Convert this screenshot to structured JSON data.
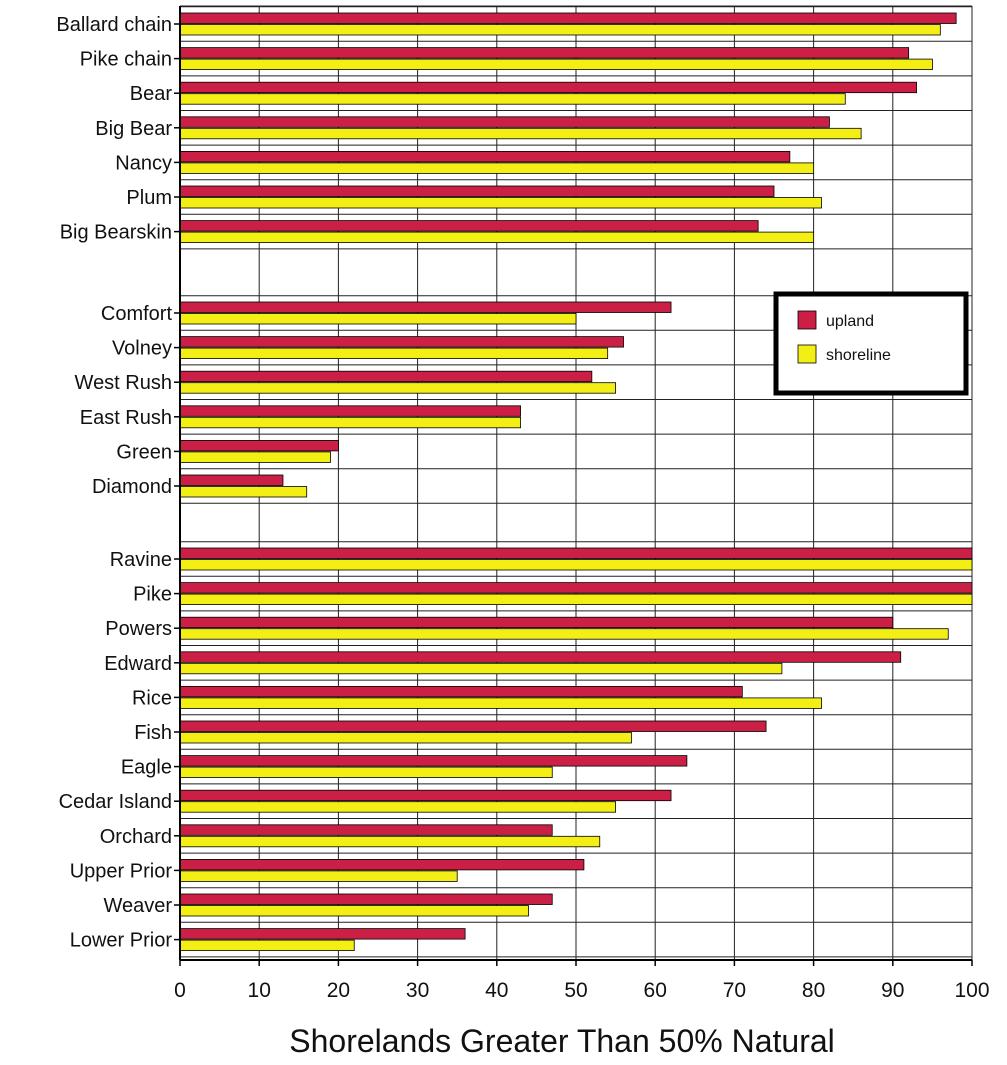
{
  "chart_data": {
    "type": "bar",
    "orientation": "horizontal",
    "xlabel": "Shorelands Greater Than 50% Natural",
    "xlim": [
      0,
      100
    ],
    "xticks": [
      0,
      10,
      20,
      30,
      40,
      50,
      60,
      70,
      80,
      90,
      100
    ],
    "grid": true,
    "legend_position": "right",
    "groups": [
      [
        "Ballard chain",
        "Pike chain",
        "Bear",
        "Big Bear",
        "Nancy",
        "Plum",
        "Big Bearskin"
      ],
      [
        "Comfort",
        "Volney",
        "West Rush",
        "East Rush",
        "Green",
        "Diamond"
      ],
      [
        "Ravine",
        "Pike",
        "Powers",
        "Edward",
        "Rice",
        "Fish",
        "Eagle",
        "Cedar Island",
        "Orchard",
        "Upper Prior",
        "Weaver",
        "Lower Prior"
      ]
    ],
    "categories": [
      "Ballard chain",
      "Pike chain",
      "Bear",
      "Big Bear",
      "Nancy",
      "Plum",
      "Big Bearskin",
      "Comfort",
      "Volney",
      "West Rush",
      "East Rush",
      "Green",
      "Diamond",
      "Ravine",
      "Pike",
      "Powers",
      "Edward",
      "Rice",
      "Fish",
      "Eagle",
      "Cedar Island",
      "Orchard",
      "Upper Prior",
      "Weaver",
      "Lower Prior"
    ],
    "series": [
      {
        "name": "upland",
        "color": "#cc1f45",
        "values": [
          98,
          92,
          93,
          82,
          77,
          75,
          73,
          62,
          56,
          52,
          43,
          20,
          13,
          100,
          100,
          90,
          91,
          71,
          74,
          64,
          62,
          47,
          51,
          47,
          36
        ]
      },
      {
        "name": "shoreline",
        "color": "#f3ee14",
        "values": [
          96,
          95,
          84,
          86,
          80,
          81,
          80,
          50,
          54,
          55,
          43,
          19,
          16,
          100,
          100,
          97,
          76,
          81,
          57,
          47,
          55,
          53,
          35,
          44,
          22
        ]
      }
    ]
  }
}
